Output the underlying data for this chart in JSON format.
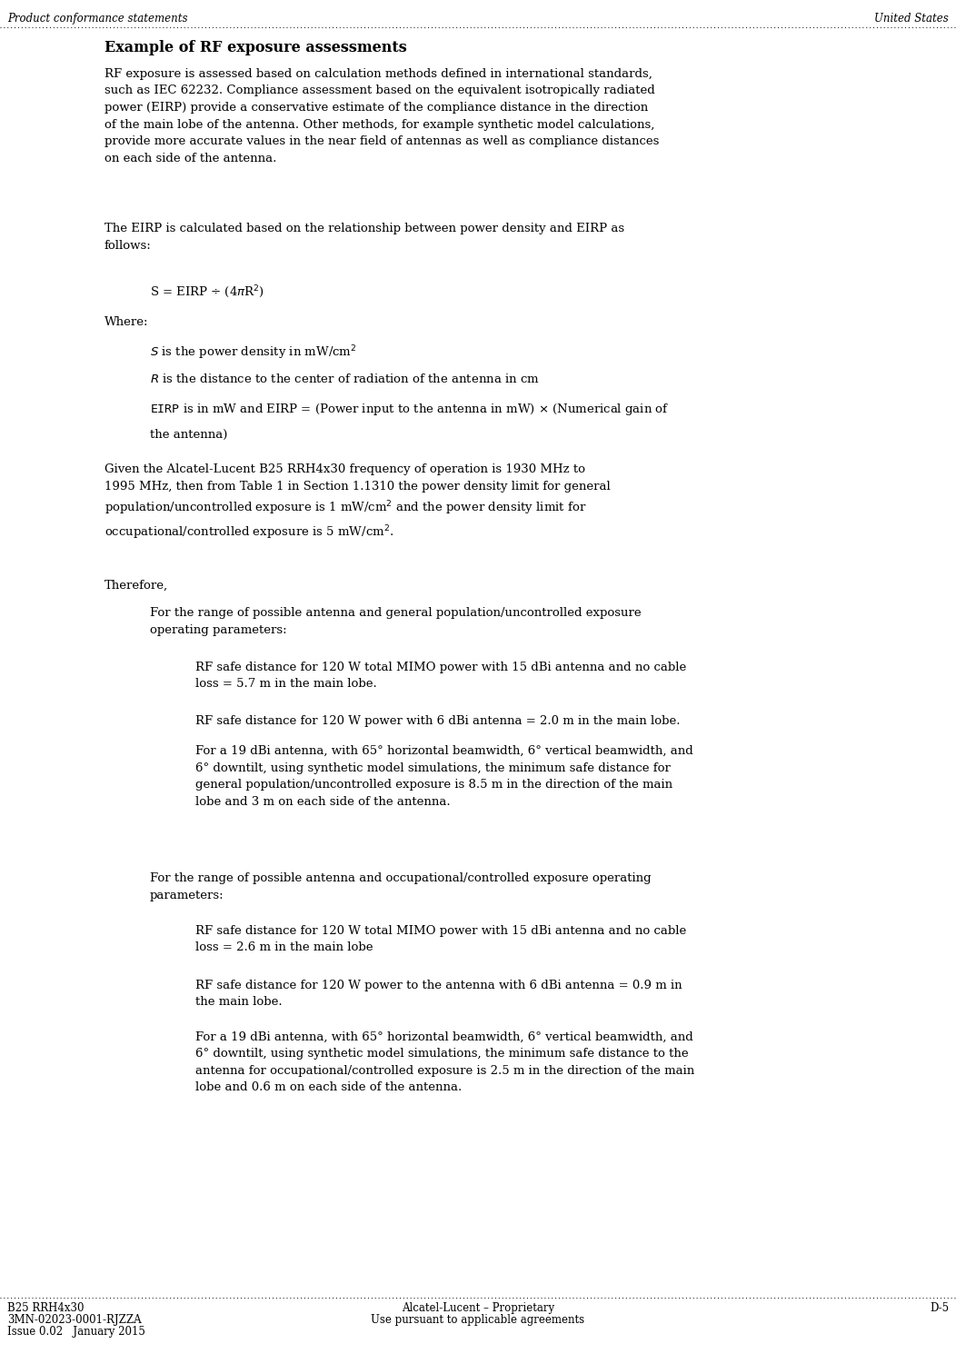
{
  "header_left": "Product conformance statements",
  "header_right": "United States",
  "footer_left_line1": "B25 RRH4x30",
  "footer_left_line2": "3MN-02023-0001-RJZZA",
  "footer_left_line3": "Issue 0.02   January 2015",
  "footer_center_line1": "Alcatel-Lucent – Proprietary",
  "footer_center_line2": "Use pursuant to applicable agreements",
  "footer_right": "D-5",
  "section_title": "Example of RF exposure assessments",
  "bg_color": "#ffffff",
  "text_color": "#000000",
  "header_fs": 8.5,
  "body_fs": 9.5,
  "title_fs": 11.5
}
